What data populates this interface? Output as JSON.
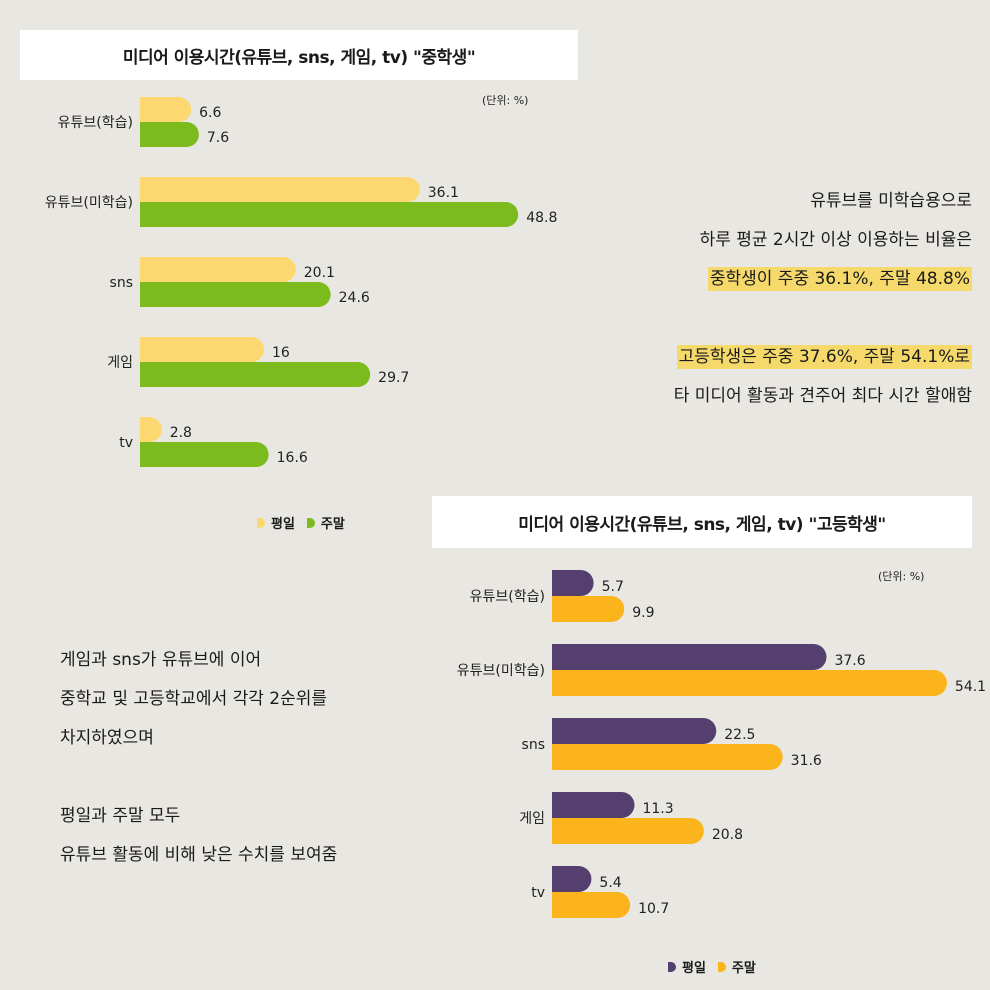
{
  "chart_data": [
    {
      "type": "bar",
      "orientation": "horizontal",
      "title": "미디어 이용시간(유튜브, sns, 게임, tv) \"중학생\"",
      "unit_label": "(단위: %)",
      "categories": [
        "유튜브(학습)",
        "유튜브(미학습)",
        "sns",
        "게임",
        "tv"
      ],
      "series": [
        {
          "name": "평일",
          "values": [
            6.6,
            36.1,
            20.1,
            16,
            2.8
          ],
          "color": "#fdd76f"
        },
        {
          "name": "주말",
          "values": [
            7.6,
            48.8,
            24.6,
            29.7,
            16.6
          ],
          "color": "#7cbb1d"
        }
      ],
      "legend": "bottom",
      "grid": false
    },
    {
      "type": "bar",
      "orientation": "horizontal",
      "title": "미디어 이용시간(유튜브, sns, 게임, tv) \"고등학생\"",
      "unit_label": "(단위: %)",
      "categories": [
        "유튜브(학습)",
        "유튜브(미학습)",
        "sns",
        "게임",
        "tv"
      ],
      "series": [
        {
          "name": "평일",
          "values": [
            5.7,
            37.6,
            22.5,
            11.3,
            5.4
          ],
          "color": "#553f6e"
        },
        {
          "name": "주말",
          "values": [
            9.9,
            54.1,
            31.6,
            20.8,
            10.7
          ],
          "color": "#fbb41c"
        }
      ],
      "legend": "bottom",
      "grid": false
    }
  ],
  "notes": {
    "right": {
      "line1": "유튜브를 미학습용으로",
      "line2": "하루 평균 2시간 이상 이용하는 비율은",
      "line3": "중학생이 주중 36.1%, 주말 48.8%",
      "line4": "고등학생은 주중 37.6%, 주말 54.1%로",
      "line5": "타 미디어 활동과 견주어 최다 시간 할애함",
      "highlight_color": "#f5d96a"
    },
    "left": {
      "line1": "게임과 sns가 유튜브에 이어",
      "line2": "중학교 및 고등학교에서 각각 2순위를",
      "line3": "차지하였으며",
      "line4": "평일과 주말 모두",
      "line5": "유튜브 활동에 비해 낮은 수치를 보여줌"
    }
  }
}
